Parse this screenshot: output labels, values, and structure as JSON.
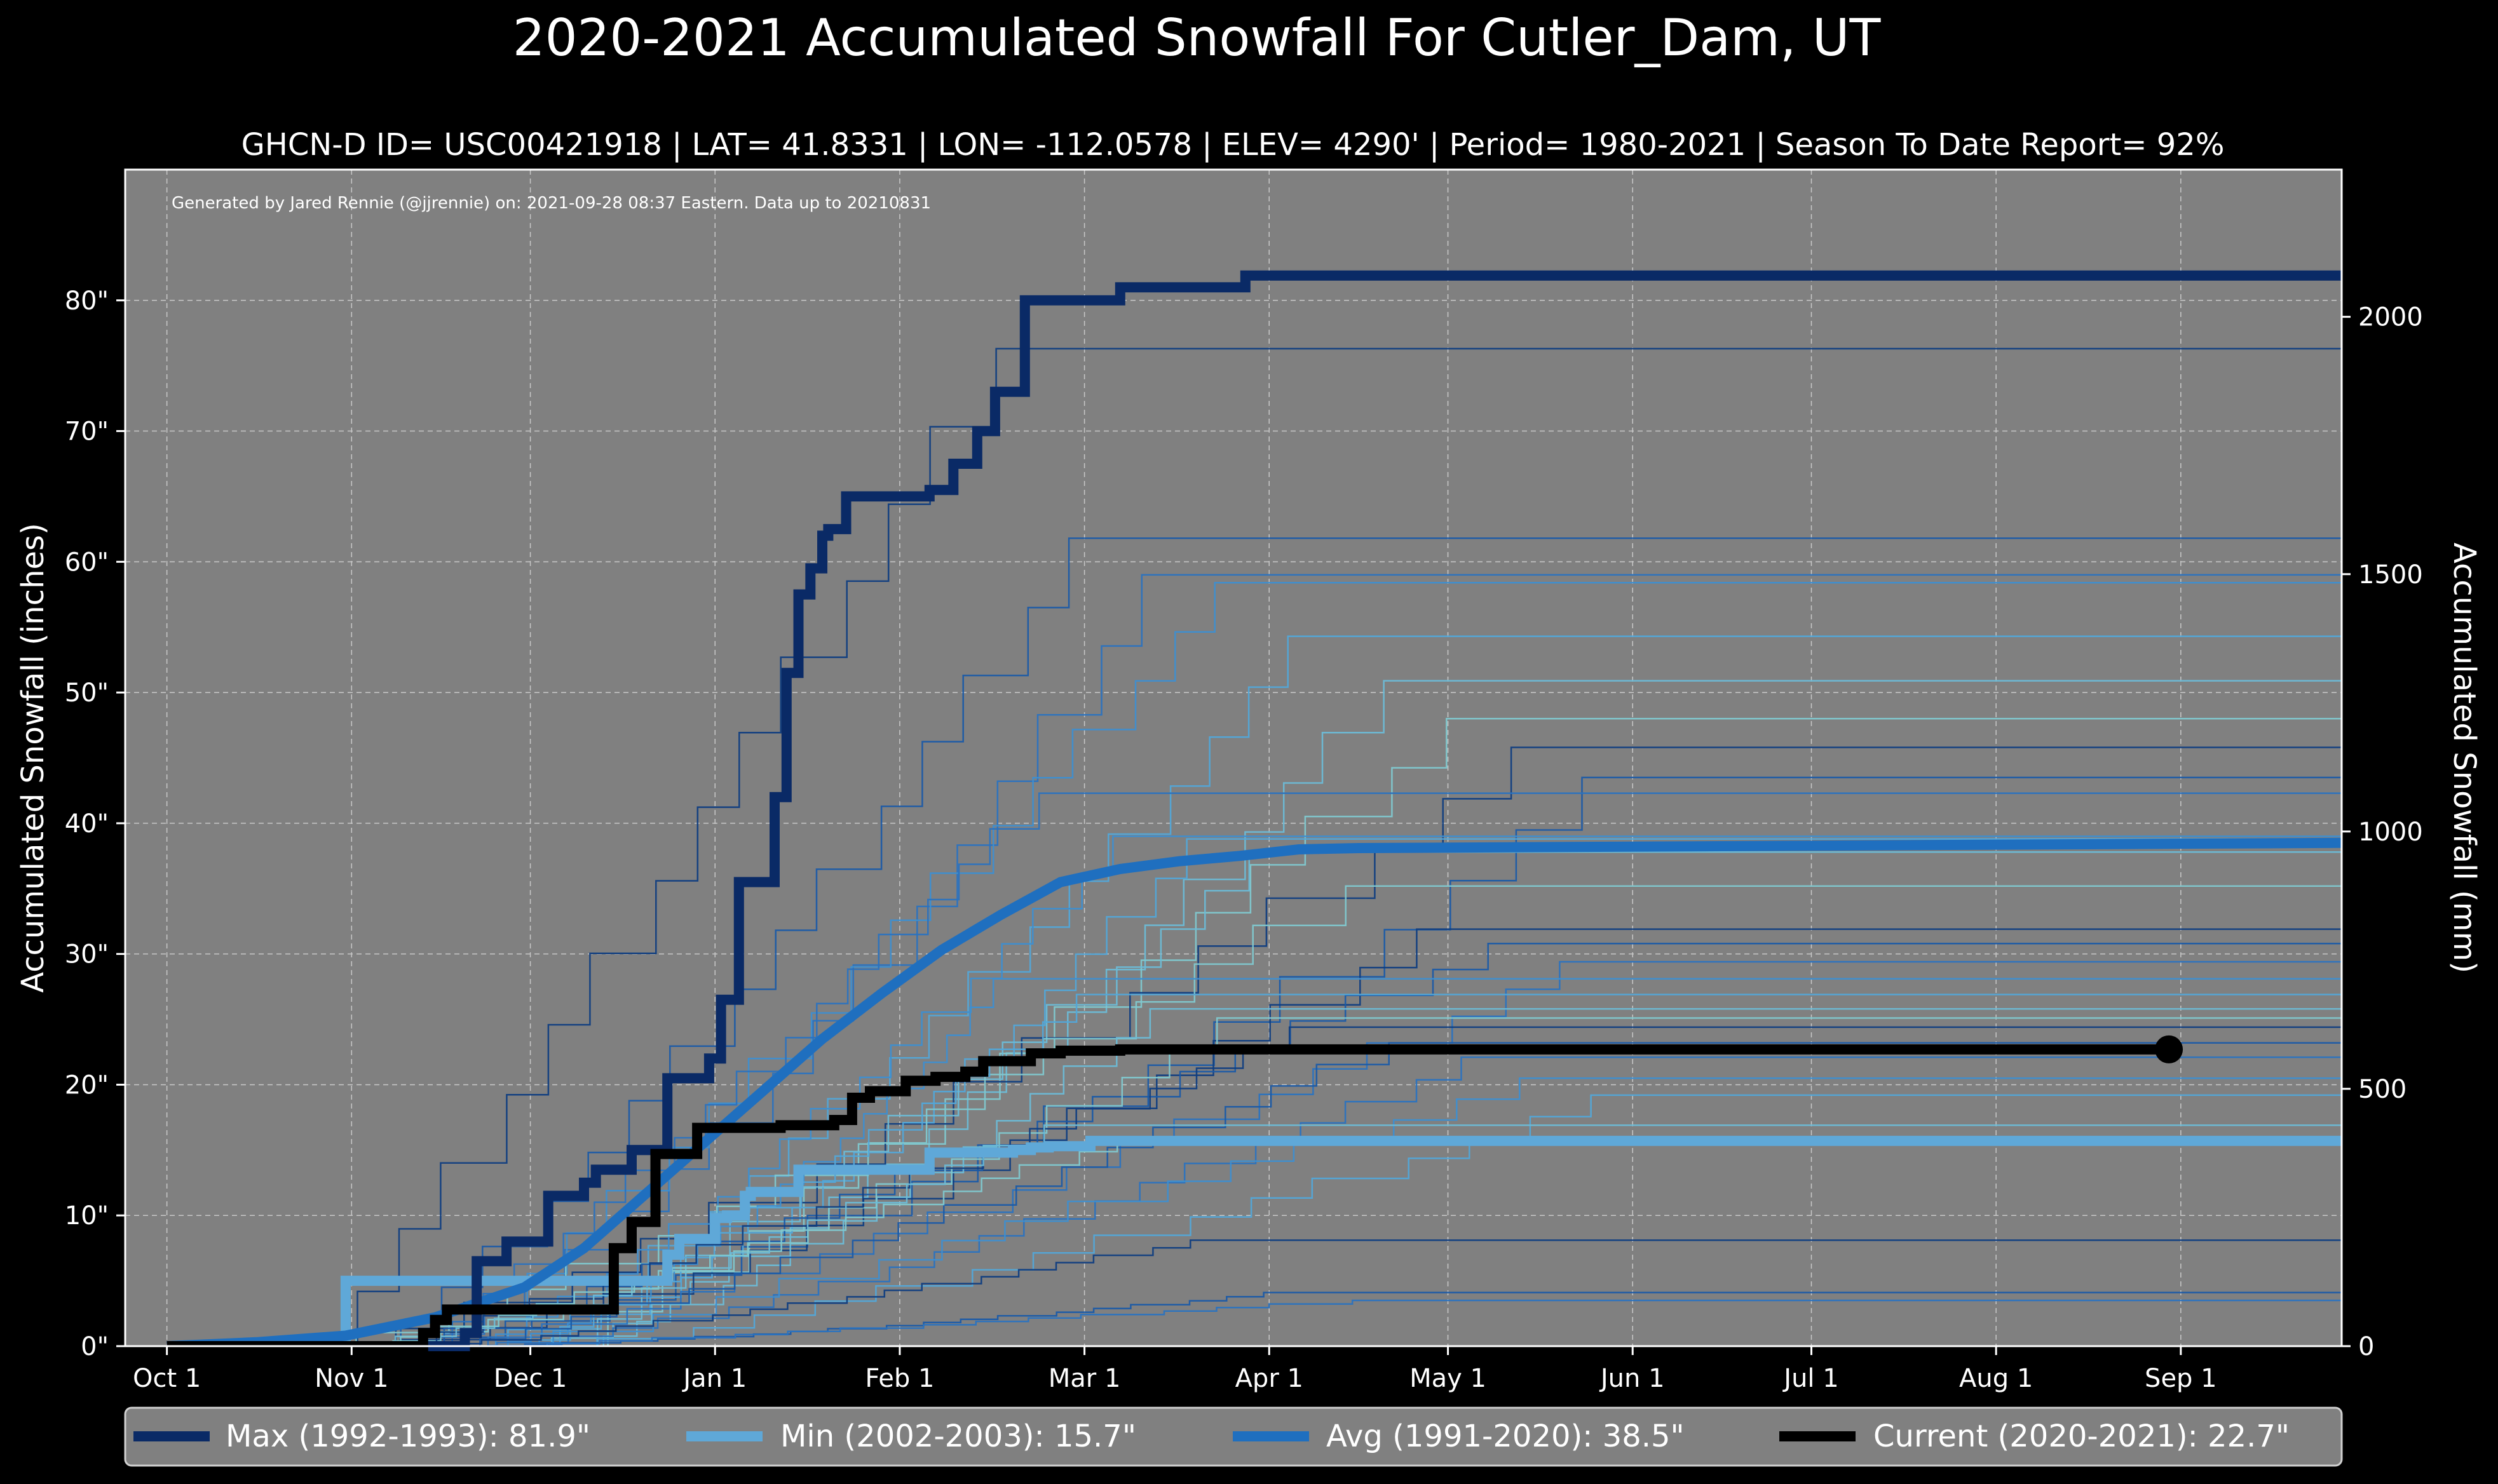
{
  "colors": {
    "background": "#000000",
    "plot_bg": "#808080",
    "grid": "#c8c8c8",
    "max": "#0a2a66",
    "min": "#5fa8d8",
    "avg": "#1f6fbf",
    "current": "#000000",
    "thin_lines": [
      "#0f3d80",
      "#1a5aa6",
      "#2a72bf",
      "#3d8ed0",
      "#52a6d8",
      "#6bbad6",
      "#80c8cf"
    ]
  },
  "header": {
    "title": "2020-2021 Accumulated Snowfall For Cutler_Dam, UT",
    "subtitle": "GHCN-D ID= USC00421918 | LAT= 41.8331 | LON= -112.0578 | ELEV= 4290' | Period= 1980-2021 | Season To Date Report= 92%",
    "credit": "Generated by Jared Rennie (@jjrennie) on: 2021-09-28 08:37 Eastern. Data up to 20210831"
  },
  "chart_data": {
    "type": "line",
    "title": "2020-2021 Accumulated Snowfall For Cutler_Dam, UT",
    "xlabel": "",
    "ylabel": "Accumulated Snowfall (inches)",
    "ylabel_right": "Accumulated Snowfall (mm)",
    "x_unit": "days since Oct 1",
    "xlim": [
      -7,
      365
    ],
    "ylim": [
      0,
      90
    ],
    "ylim_right_mm": [
      0,
      2286
    ],
    "grid": true,
    "legend_position": "below",
    "x_ticks": [
      {
        "label": "Oct 1",
        "day": 0
      },
      {
        "label": "Nov 1",
        "day": 31
      },
      {
        "label": "Dec 1",
        "day": 61
      },
      {
        "label": "Jan 1",
        "day": 92
      },
      {
        "label": "Feb 1",
        "day": 123
      },
      {
        "label": "Mar 1",
        "day": 154
      },
      {
        "label": "Apr 1",
        "day": 185
      },
      {
        "label": "May 1",
        "day": 215
      },
      {
        "label": "Jun 1",
        "day": 246
      },
      {
        "label": "Jul 1",
        "day": 276
      },
      {
        "label": "Aug 1",
        "day": 307
      },
      {
        "label": "Sep 1",
        "day": 338
      }
    ],
    "y_ticks": [
      {
        "label": "0\"",
        "value": 0
      },
      {
        "label": "10\"",
        "value": 10
      },
      {
        "label": "20\"",
        "value": 20
      },
      {
        "label": "30\"",
        "value": 30
      },
      {
        "label": "40\"",
        "value": 40
      },
      {
        "label": "50\"",
        "value": 50
      },
      {
        "label": "60\"",
        "value": 60
      },
      {
        "label": "70\"",
        "value": 70
      },
      {
        "label": "80\"",
        "value": 80
      }
    ],
    "y_ticks_right": [
      {
        "label": "0",
        "value": 0
      },
      {
        "label": "500",
        "value": 500
      },
      {
        "label": "1000",
        "value": 1000
      },
      {
        "label": "1500",
        "value": 1500
      },
      {
        "label": "2000",
        "value": 2000
      }
    ],
    "series": [
      {
        "name": "Max (1992-1993)",
        "legend": "Max (1992-1993):   81.9\"",
        "total": 81.9,
        "color": "#0a2a66",
        "width": 16,
        "x": [
          0,
          45,
          50,
          52,
          56,
          57,
          62,
          64,
          70,
          72,
          76,
          78,
          84,
          86,
          88,
          91,
          93,
          95,
          96,
          100,
          102,
          104,
          106,
          108,
          110,
          111,
          113,
          114,
          117,
          120,
          121,
          123,
          125,
          128,
          132,
          136,
          137,
          139,
          144,
          150,
          153,
          160,
          165,
          180,
          181,
          191,
          365
        ],
        "y": [
          0,
          0,
          1,
          6.5,
          6.5,
          8,
          8,
          11.5,
          12.5,
          13.5,
          13.5,
          15,
          20.5,
          20.5,
          20.5,
          22,
          26.5,
          26.5,
          35.5,
          35.5,
          42,
          51.5,
          57.5,
          59.5,
          62,
          62.5,
          62.5,
          65,
          65,
          65,
          65,
          65,
          65,
          65.5,
          67.5,
          70,
          70,
          73,
          80,
          80,
          80,
          81,
          81,
          81,
          81.9,
          81.9,
          81.9
        ]
      },
      {
        "name": "Min (2002-2003)",
        "legend": "Min (2002-2003):   15.7\"",
        "total": 15.7,
        "color": "#5fa8d8",
        "width": 16,
        "x": [
          0,
          29,
          30,
          82,
          84,
          86,
          92,
          94,
          97,
          98,
          104,
          106,
          115,
          118,
          122,
          128,
          139,
          142,
          145,
          148,
          155,
          365
        ],
        "y": [
          0,
          0,
          5,
          5,
          7,
          8.2,
          9.8,
          10,
          11.5,
          11.8,
          11.8,
          13.5,
          13.5,
          13.5,
          13.5,
          14.8,
          14.8,
          15,
          15.2,
          15.3,
          15.7,
          15.7
        ]
      },
      {
        "name": "Avg (1991-2020)",
        "legend": "Avg (1991-2020):   38.5\"",
        "total": 38.5,
        "color": "#1f6fbf",
        "width": 16,
        "x": [
          0,
          15,
          30,
          45,
          60,
          70,
          80,
          90,
          100,
          110,
          120,
          130,
          140,
          150,
          160,
          170,
          180,
          190,
          200,
          365
        ],
        "y": [
          0,
          0.3,
          0.8,
          2.2,
          4.5,
          7.5,
          11.5,
          15.5,
          19.5,
          23.5,
          27,
          30.3,
          33,
          35.5,
          36.5,
          37.1,
          37.5,
          38,
          38.1,
          38.5
        ]
      },
      {
        "name": "Current (2020-2021)",
        "legend": "Current (2020-2021):   22.7\"",
        "total": 22.7,
        "color": "#000000",
        "width": 16,
        "end_marker": true,
        "x": [
          0,
          40,
          43,
          45,
          47,
          72,
          75,
          78,
          82,
          85,
          89,
          93,
          103,
          112,
          115,
          118,
          124,
          129,
          134,
          137,
          145,
          150,
          155,
          160,
          336
        ],
        "y": [
          0,
          0,
          1,
          2,
          2.8,
          2.8,
          7.5,
          9.5,
          14.7,
          14.7,
          16.7,
          16.7,
          16.9,
          17.3,
          19,
          19.5,
          20.3,
          20.6,
          21,
          21.8,
          22.4,
          22.6,
          22.6,
          22.7,
          22.7
        ]
      }
    ],
    "historical_season_totals": [
      76.3,
      61.8,
      59,
      58.4,
      54.3,
      50.9,
      48,
      45.8,
      43.5,
      42.3,
      39,
      38.8,
      37.8,
      35.2,
      31.9,
      30.8,
      29.4,
      28.1,
      26.9,
      25.8,
      25.1,
      24.4,
      23.2,
      22.1,
      20.5,
      19.2,
      16.9,
      15.9,
      8.1,
      4.1,
      3.5
    ]
  }
}
